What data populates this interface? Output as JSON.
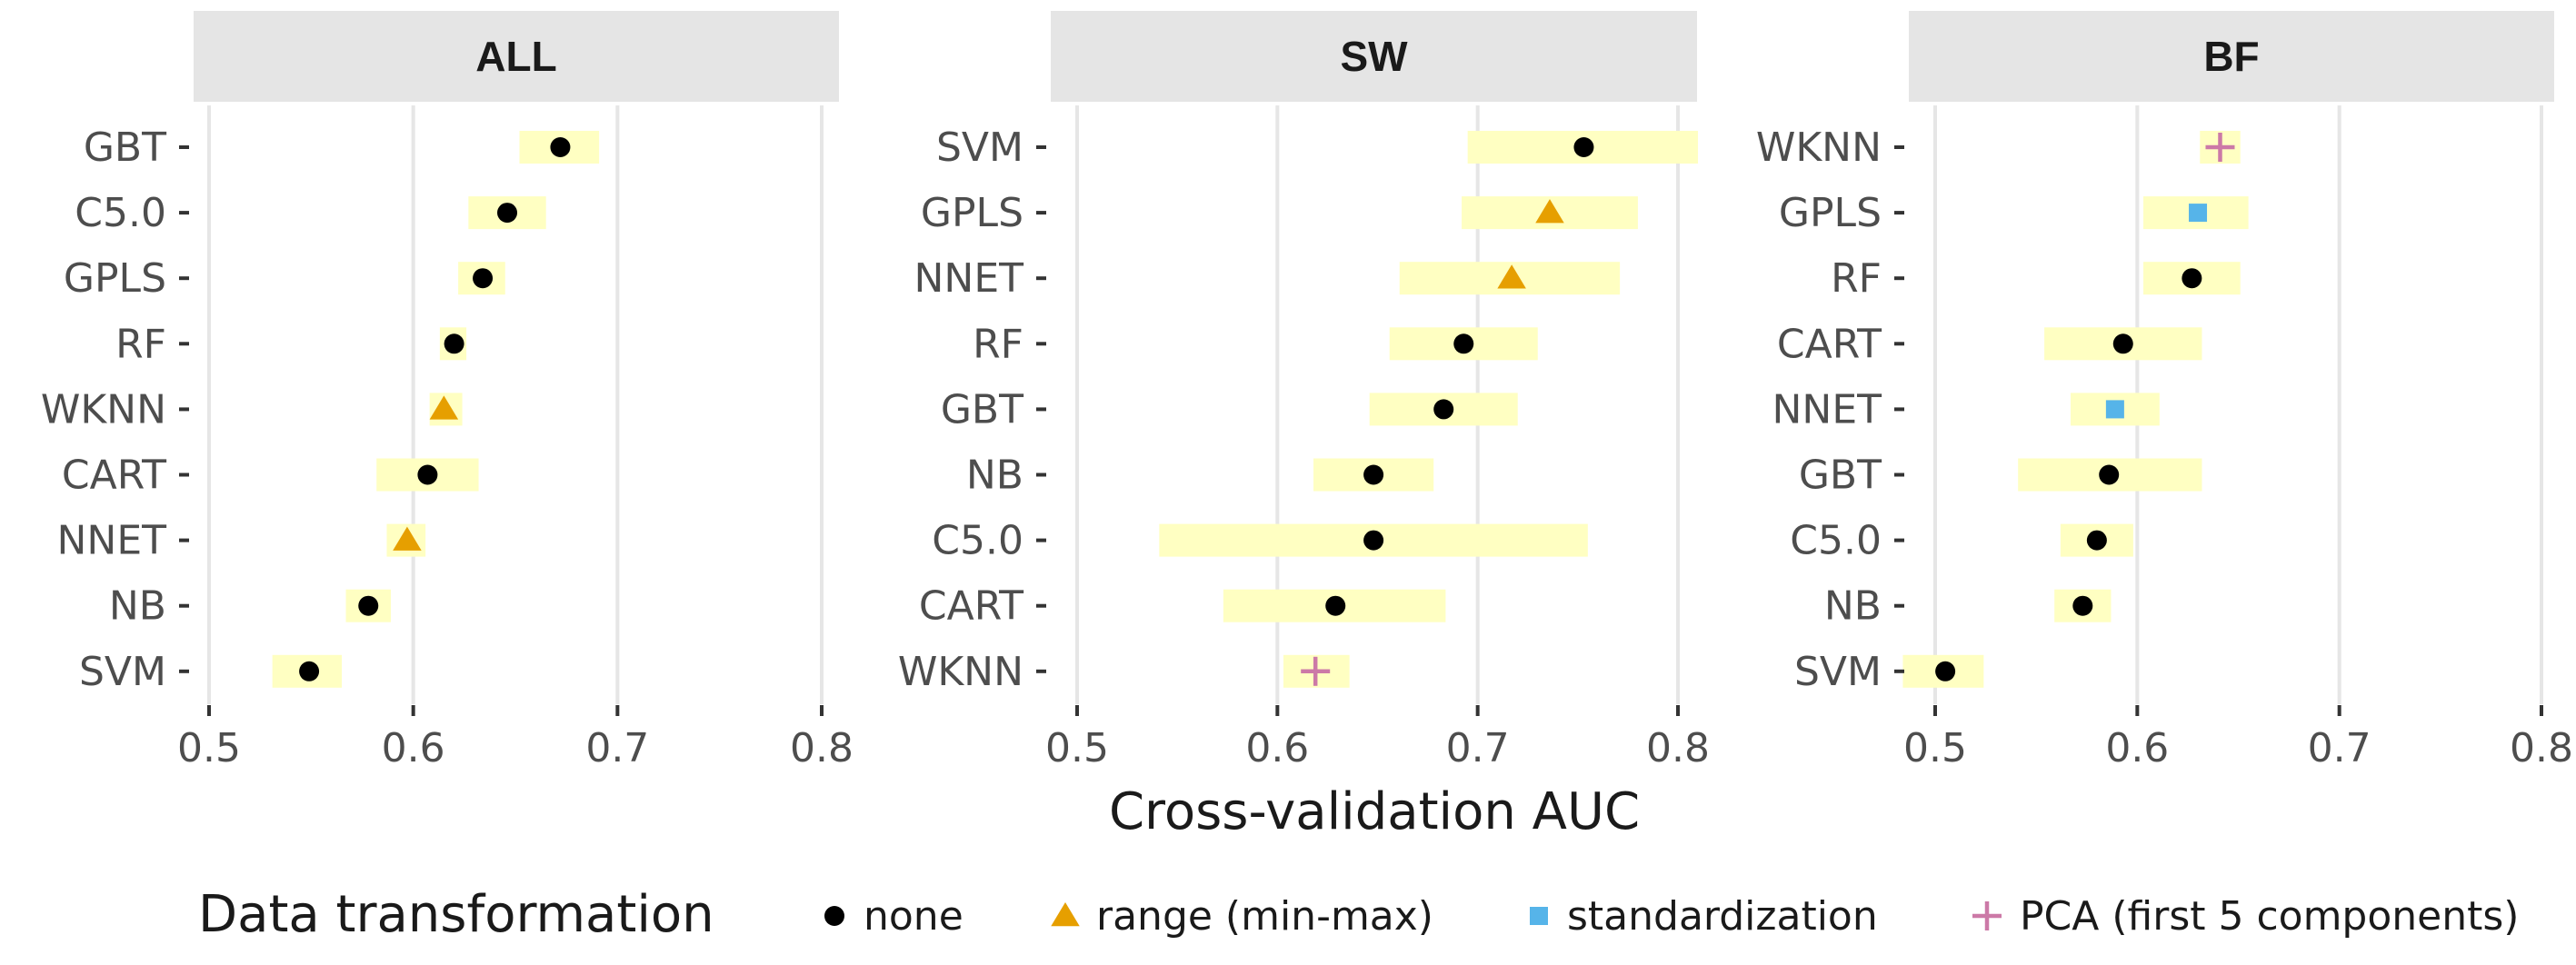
{
  "chart_data": {
    "type": "dot-range",
    "xlabel": "Cross-validation AUC",
    "xlim": [
      0.5,
      0.8
    ],
    "xticks": [
      "0.5",
      "0.6",
      "0.7",
      "0.8"
    ],
    "grid": true,
    "legend": {
      "title": "Data transformation",
      "position": "bottom",
      "entries": [
        {
          "key": "none",
          "label": "none",
          "color": "#000000",
          "shape": "circle"
        },
        {
          "key": "range",
          "label": "range (min-max)",
          "color": "#E69F00",
          "shape": "triangle"
        },
        {
          "key": "standardization",
          "label": "standardization",
          "color": "#56B4E9",
          "shape": "square"
        },
        {
          "key": "pca",
          "label": "PCA (first 5 components)",
          "color": "#CC79A7",
          "shape": "plus"
        }
      ]
    },
    "range_color": "#FFFFC2",
    "panels": [
      {
        "title": "ALL",
        "rows": [
          {
            "model": "GBT",
            "value": 0.672,
            "low": 0.652,
            "high": 0.691,
            "transform": "none"
          },
          {
            "model": "C5.0",
            "value": 0.646,
            "low": 0.627,
            "high": 0.665,
            "transform": "none"
          },
          {
            "model": "GPLS",
            "value": 0.634,
            "low": 0.622,
            "high": 0.645,
            "transform": "none"
          },
          {
            "model": "RF",
            "value": 0.62,
            "low": 0.613,
            "high": 0.626,
            "transform": "none"
          },
          {
            "model": "WKNN",
            "value": 0.615,
            "low": 0.608,
            "high": 0.624,
            "transform": "range"
          },
          {
            "model": "CART",
            "value": 0.607,
            "low": 0.582,
            "high": 0.632,
            "transform": "none"
          },
          {
            "model": "NNET",
            "value": 0.597,
            "low": 0.587,
            "high": 0.606,
            "transform": "range"
          },
          {
            "model": "NB",
            "value": 0.578,
            "low": 0.567,
            "high": 0.589,
            "transform": "none"
          },
          {
            "model": "SVM",
            "value": 0.549,
            "low": 0.531,
            "high": 0.565,
            "transform": "none"
          }
        ]
      },
      {
        "title": "SW",
        "rows": [
          {
            "model": "SVM",
            "value": 0.753,
            "low": 0.695,
            "high": 0.81,
            "transform": "none"
          },
          {
            "model": "GPLS",
            "value": 0.736,
            "low": 0.692,
            "high": 0.78,
            "transform": "range"
          },
          {
            "model": "NNET",
            "value": 0.717,
            "low": 0.661,
            "high": 0.771,
            "transform": "range"
          },
          {
            "model": "RF",
            "value": 0.693,
            "low": 0.656,
            "high": 0.73,
            "transform": "none"
          },
          {
            "model": "GBT",
            "value": 0.683,
            "low": 0.646,
            "high": 0.72,
            "transform": "none"
          },
          {
            "model": "NB",
            "value": 0.648,
            "low": 0.618,
            "high": 0.678,
            "transform": "none"
          },
          {
            "model": "C5.0",
            "value": 0.648,
            "low": 0.541,
            "high": 0.755,
            "transform": "none"
          },
          {
            "model": "CART",
            "value": 0.629,
            "low": 0.573,
            "high": 0.684,
            "transform": "none"
          },
          {
            "model": "WKNN",
            "value": 0.619,
            "low": 0.603,
            "high": 0.636,
            "transform": "pca"
          }
        ]
      },
      {
        "title": "BF",
        "rows": [
          {
            "model": "WKNN",
            "value": 0.641,
            "low": 0.631,
            "high": 0.651,
            "transform": "pca"
          },
          {
            "model": "GPLS",
            "value": 0.63,
            "low": 0.603,
            "high": 0.655,
            "transform": "standardization"
          },
          {
            "model": "RF",
            "value": 0.627,
            "low": 0.603,
            "high": 0.651,
            "transform": "none"
          },
          {
            "model": "CART",
            "value": 0.593,
            "low": 0.554,
            "high": 0.632,
            "transform": "none"
          },
          {
            "model": "NNET",
            "value": 0.589,
            "low": 0.567,
            "high": 0.611,
            "transform": "standardization"
          },
          {
            "model": "GBT",
            "value": 0.586,
            "low": 0.541,
            "high": 0.632,
            "transform": "none"
          },
          {
            "model": "C5.0",
            "value": 0.58,
            "low": 0.562,
            "high": 0.598,
            "transform": "none"
          },
          {
            "model": "NB",
            "value": 0.573,
            "low": 0.559,
            "high": 0.587,
            "transform": "none"
          },
          {
            "model": "SVM",
            "value": 0.505,
            "low": 0.484,
            "high": 0.524,
            "transform": "none"
          }
        ]
      }
    ]
  }
}
